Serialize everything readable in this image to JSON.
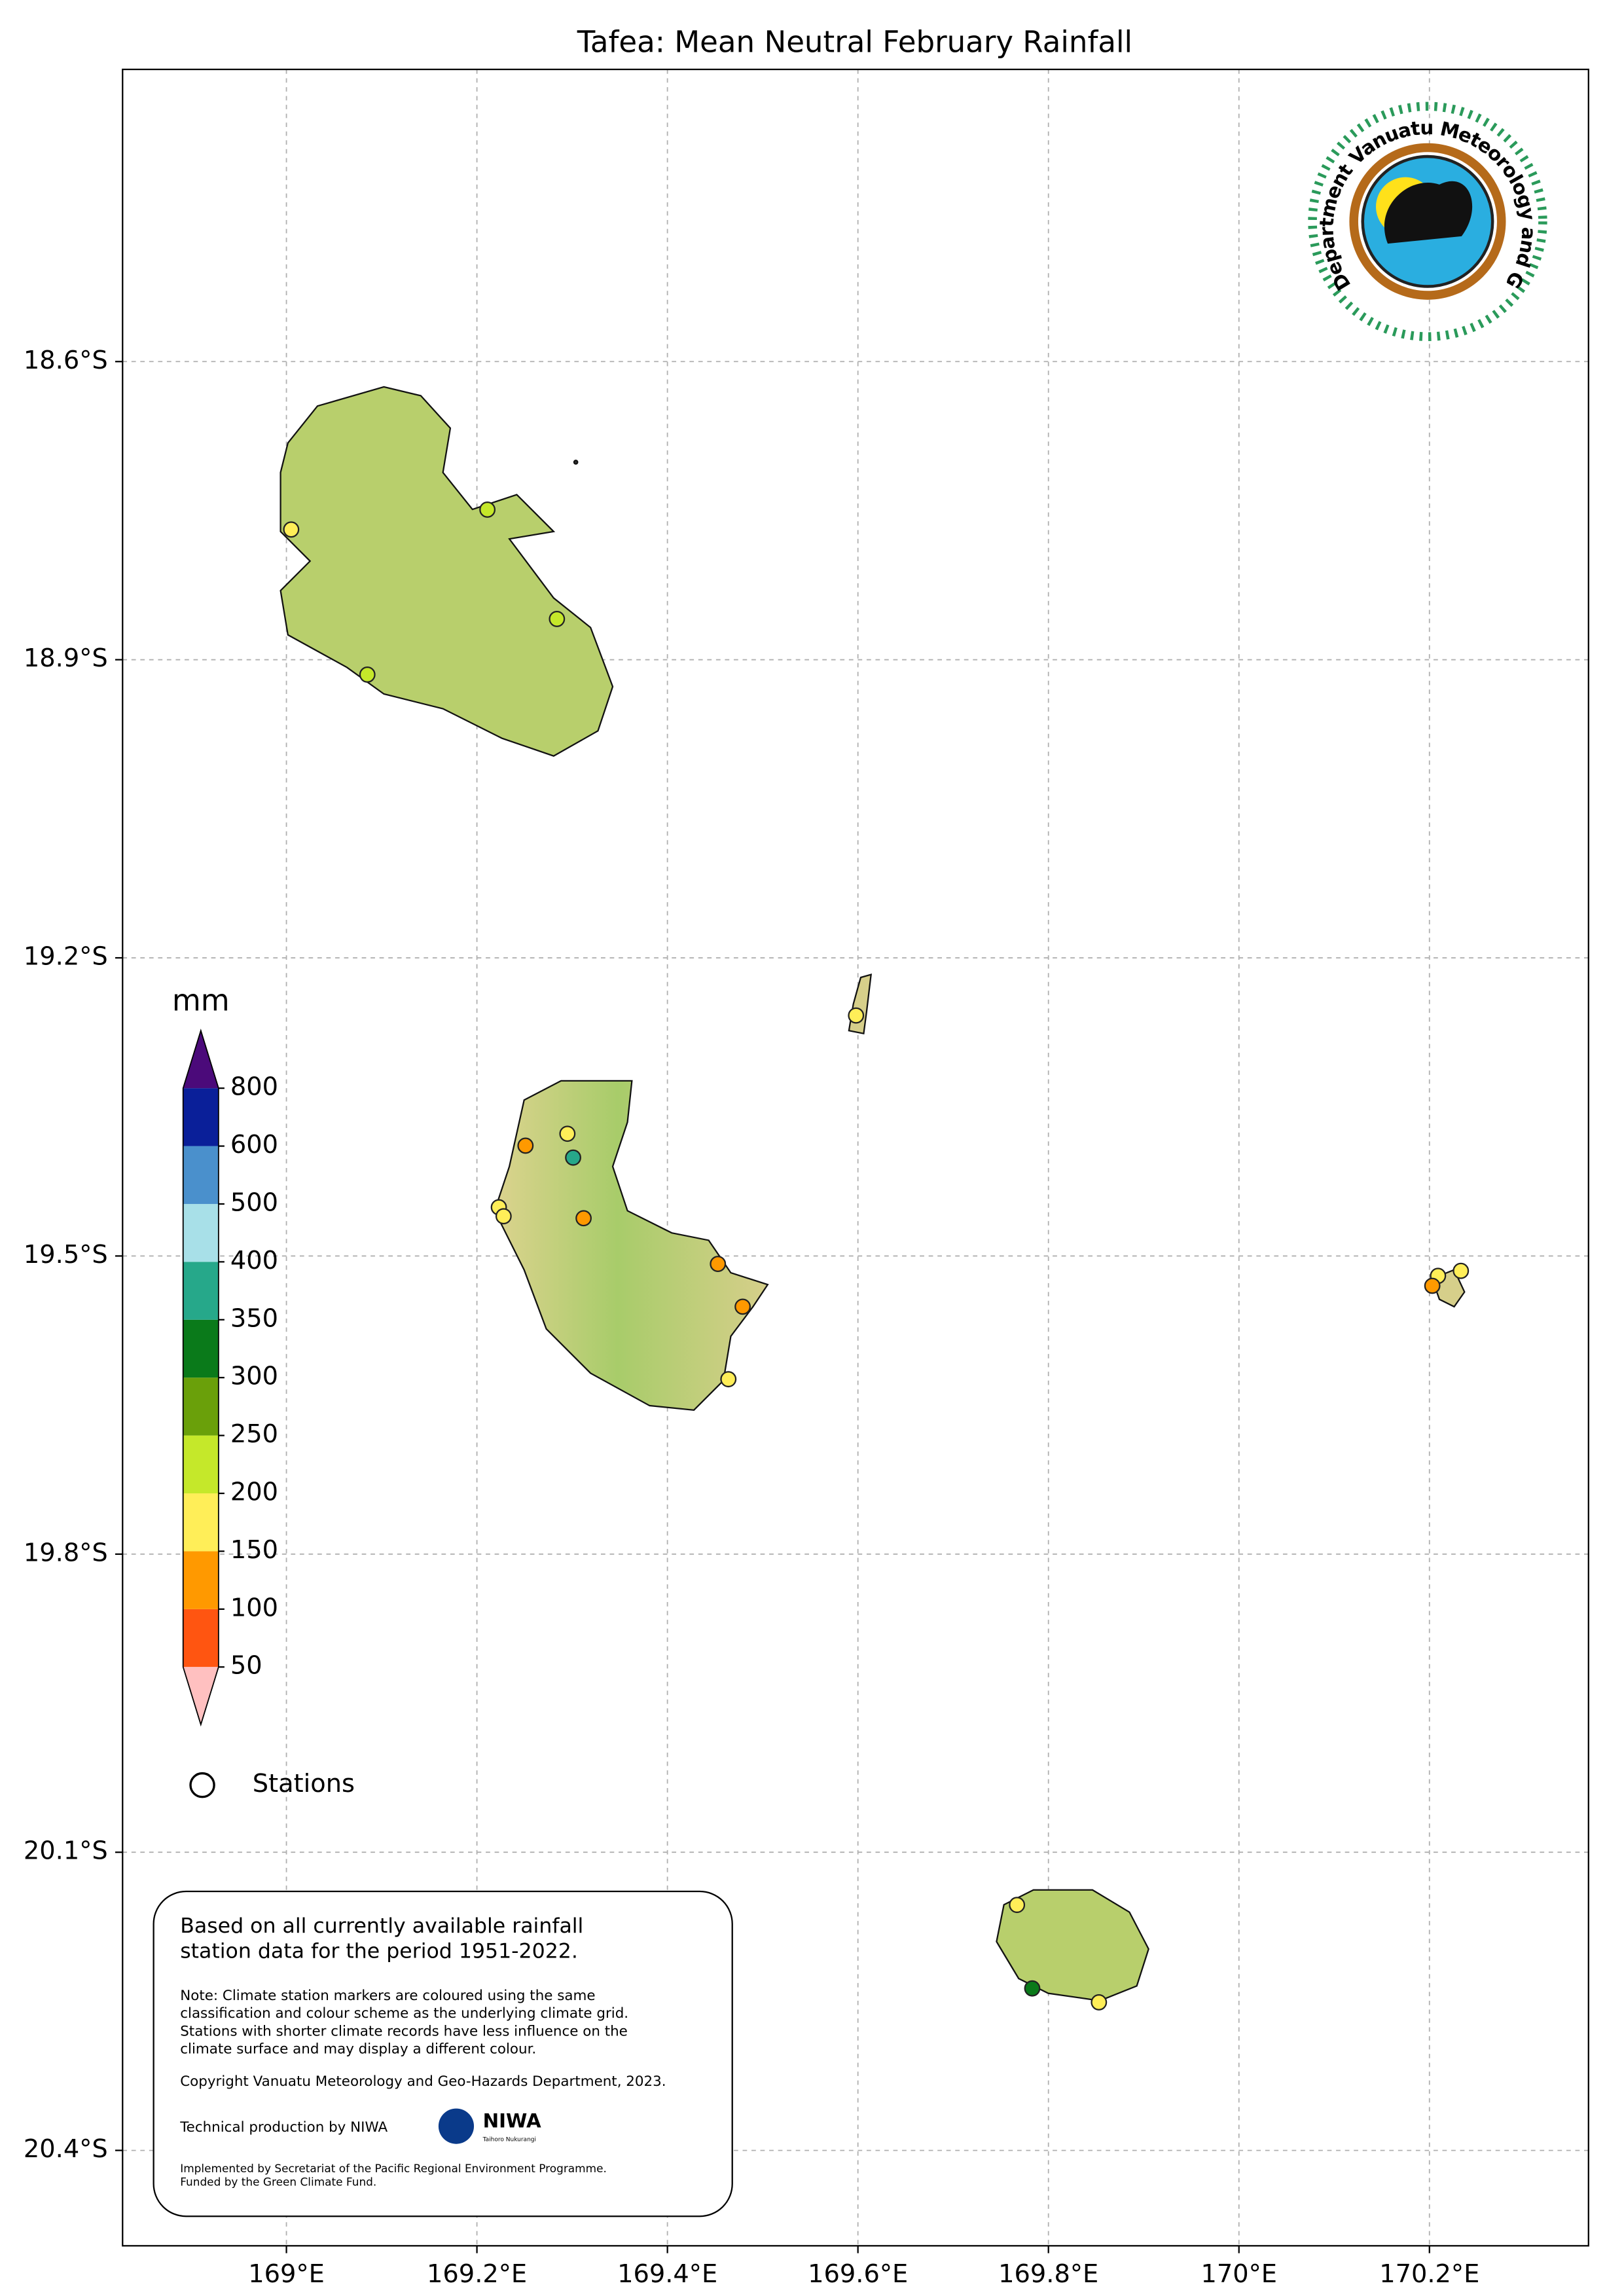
{
  "map": {
    "type": "station-map",
    "title": "Tafea: Mean Neutral February Rainfall",
    "xlim": [
      168.828,
      170.367
    ],
    "ylim": [
      -20.496,
      -18.306
    ],
    "xticks": [
      {
        "value": 169,
        "label": "169°E"
      },
      {
        "value": 169.2,
        "label": "169.2°E"
      },
      {
        "value": 169.4,
        "label": "169.4°E"
      },
      {
        "value": 169.6,
        "label": "169.6°E"
      },
      {
        "value": 169.8,
        "label": "169.8°E"
      },
      {
        "value": 170,
        "label": "170°E"
      },
      {
        "value": 170.2,
        "label": "170.2°E"
      }
    ],
    "yticks": [
      {
        "value": -18.6,
        "label": "18.6°S"
      },
      {
        "value": -18.9,
        "label": "18.9°S"
      },
      {
        "value": -19.2,
        "label": "19.2°S"
      },
      {
        "value": -19.5,
        "label": "19.5°S"
      },
      {
        "value": -19.8,
        "label": "19.8°S"
      },
      {
        "value": -20.1,
        "label": "20.1°S"
      },
      {
        "value": -20.4,
        "label": "20.4°S"
      }
    ],
    "grid": true,
    "stations": {
      "lon": [
        169.005,
        169.211,
        169.284,
        169.085,
        169.251,
        169.295,
        169.301,
        169.223,
        169.228,
        169.312,
        169.453,
        169.479,
        169.464,
        169.598,
        170.209,
        170.233,
        170.203,
        169.767,
        169.783,
        169.853
      ],
      "lat": [
        -18.769,
        -18.749,
        -18.859,
        -18.915,
        -19.389,
        -19.377,
        -19.401,
        -19.451,
        -19.46,
        -19.462,
        -19.508,
        -19.551,
        -19.624,
        -19.258,
        -19.52,
        -19.515,
        -19.53,
        -20.153,
        -20.237,
        -20.251
      ],
      "colors": [
        "#ffee58",
        "#c5e82a",
        "#c5e82a",
        "#c5e82a",
        "#ff9900",
        "#ffee58",
        "#26a88a",
        "#ffee58",
        "#ffee58",
        "#ff9900",
        "#ff9900",
        "#ff9900",
        "#ffee58",
        "#ffee58",
        "#ffee58",
        "#ffee58",
        "#ff9900",
        "#ffee58",
        "#0a7a1a",
        "#ffee58"
      ]
    }
  },
  "colorbar": {
    "label": "mm",
    "levels": [
      50,
      100,
      150,
      200,
      250,
      300,
      350,
      400,
      500,
      600,
      800
    ],
    "colors": [
      "#ff5511",
      "#ff9900",
      "#ffee58",
      "#c5e82a",
      "#6aa00a",
      "#0a7a1a",
      "#26a88a",
      "#a8e0e8",
      "#4a90cc",
      "#0a1f99"
    ],
    "under_color": "#ffc0c0",
    "over_color": "#4b0a7a"
  },
  "legend": {
    "label": "Stations"
  },
  "info": {
    "lines": [
      "Based on all currently available rainfall",
      "station data for the period 1951-2022."
    ],
    "note": [
      "Note: Climate station markers are coloured using the same",
      "classification and colour scheme as the underlying climate grid.",
      "Stations with shorter climate records have less influence on the",
      "climate surface and may display a different colour."
    ],
    "copyright": "Copyright Vanuatu Meteorology and Geo-Hazards Department, 2023.",
    "production": "Technical production by NIWA",
    "niwa": "NIWA",
    "niwa_sub": "Taihoro Nukurangi",
    "funding": [
      "Implemented by Secretariat of the Pacific Regional Environment Programme.",
      "Funded by the Green Climate Fund."
    ]
  },
  "logo": {
    "text": "Department Vanuatu Meteorology and Geo-Hazards"
  }
}
